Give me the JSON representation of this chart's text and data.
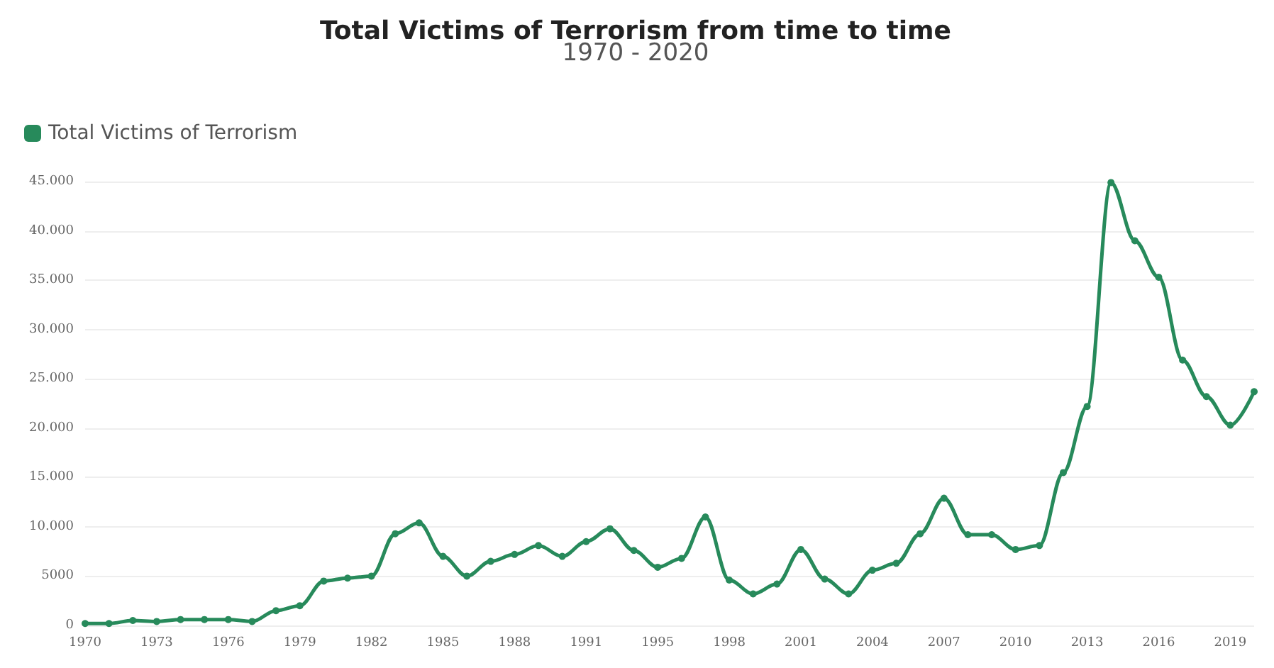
{
  "chart_data": {
    "type": "line",
    "title": "Total Victims of Terrorism from time to time",
    "subtitle": "1970 - 2020",
    "categories": [
      "1970",
      null,
      null,
      "1973",
      null,
      null,
      "1976",
      null,
      null,
      "1979",
      null,
      null,
      "1982",
      null,
      null,
      "1985",
      null,
      null,
      "1988",
      null,
      null,
      "1991",
      null,
      null,
      "1995",
      null,
      null,
      "1998",
      null,
      null,
      "2001",
      null,
      null,
      "2004",
      null,
      null,
      "2007",
      null,
      null,
      "2010",
      null,
      null,
      "2013",
      null,
      null,
      "2016",
      null,
      null,
      "2019",
      null
    ],
    "series": [
      {
        "name": "Total Victims of Terrorism",
        "color": "#278a5b",
        "values": [
          200,
          200,
          500,
          400,
          600,
          600,
          600,
          400,
          1500,
          2000,
          4500,
          4800,
          5000,
          9300,
          10400,
          7000,
          5000,
          6500,
          7200,
          8100,
          7000,
          8500,
          9800,
          7600,
          5900,
          6800,
          11000,
          4600,
          3200,
          4200,
          7700,
          4700,
          3200,
          5600,
          6300,
          9300,
          12900,
          9200,
          9200,
          7700,
          8100,
          15500,
          22200,
          44900,
          39000,
          35300,
          26900,
          23200,
          20300,
          23700
        ]
      }
    ],
    "ylim": [
      0,
      45000
    ],
    "yticks": [
      0,
      5000,
      {
        "value": 10000,
        "label": "10.000"
      },
      {
        "value": 15000,
        "label": "15.000"
      },
      {
        "value": 20000,
        "label": "20.000"
      },
      {
        "value": 25000,
        "label": "25.000"
      },
      {
        "value": 30000,
        "label": "30.000"
      },
      {
        "value": 35000,
        "label": "35.000"
      },
      {
        "value": 40000,
        "label": "40.000"
      },
      {
        "value": 45000,
        "label": "45.000"
      }
    ],
    "grid": "y",
    "legend": "top left",
    "marker": "circle",
    "line_style": "solid"
  }
}
